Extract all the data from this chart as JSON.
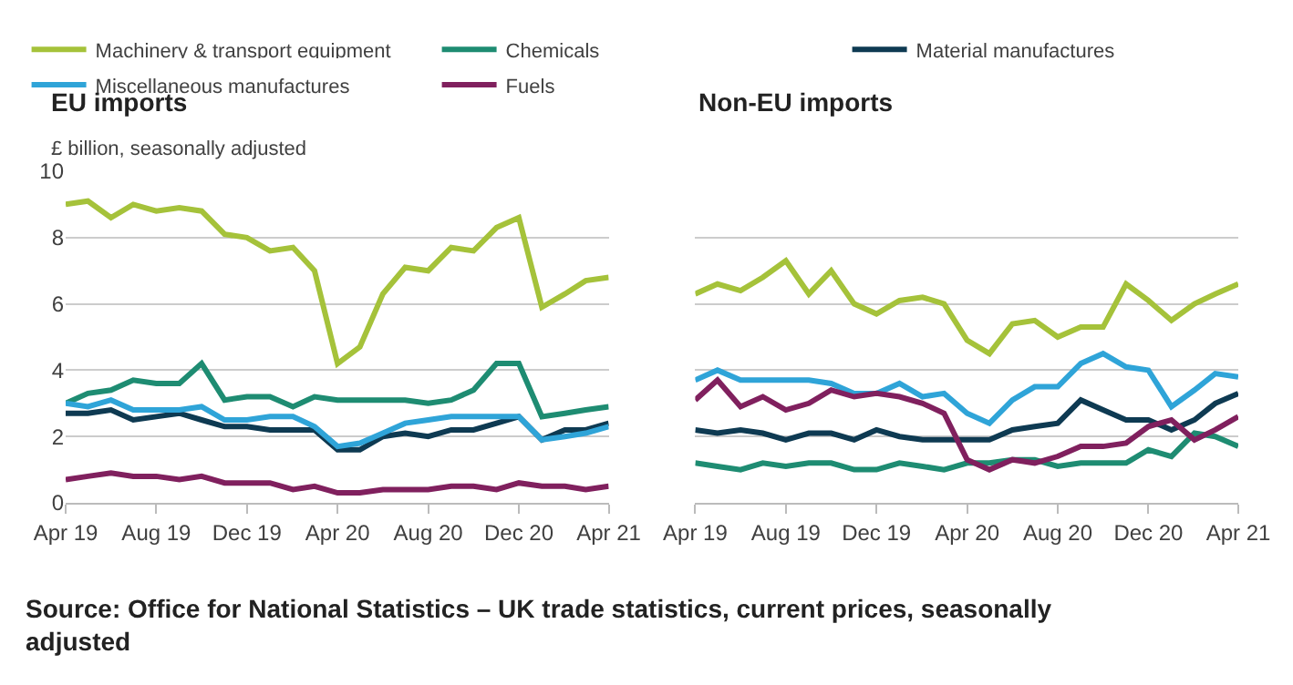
{
  "chart_data": [
    {
      "type": "line",
      "title": "EU imports",
      "ylabel": "£ billion, seasonally adjusted",
      "x": [
        "2019-04",
        "2019-05",
        "2019-06",
        "2019-07",
        "2019-08",
        "2019-09",
        "2019-10",
        "2019-11",
        "2019-12",
        "2020-01",
        "2020-02",
        "2020-03",
        "2020-04",
        "2020-05",
        "2020-06",
        "2020-07",
        "2020-08",
        "2020-09",
        "2020-10",
        "2020-11",
        "2020-12",
        "2021-01",
        "2021-02",
        "2021-03",
        "2021-04"
      ],
      "series": [
        {
          "name": "Machinery & transport equipment",
          "color": "#a5c23a",
          "values": [
            9.0,
            9.1,
            8.6,
            9.0,
            8.8,
            8.9,
            8.8,
            8.1,
            8.0,
            7.6,
            7.7,
            7.0,
            4.2,
            4.7,
            6.3,
            7.1,
            7.0,
            7.7,
            7.6,
            8.3,
            8.6,
            5.9,
            6.3,
            6.7,
            6.8
          ]
        },
        {
          "name": "Chemicals",
          "color": "#1e8c72",
          "values": [
            3.0,
            3.3,
            3.4,
            3.7,
            3.6,
            3.6,
            4.2,
            3.1,
            3.2,
            3.2,
            2.9,
            3.2,
            3.1,
            3.1,
            3.1,
            3.1,
            3.0,
            3.1,
            3.4,
            4.2,
            4.2,
            2.6,
            2.7,
            2.8,
            2.9
          ]
        },
        {
          "name": "Material manufactures",
          "color": "#0e3a52",
          "values": [
            2.7,
            2.7,
            2.8,
            2.5,
            2.6,
            2.7,
            2.5,
            2.3,
            2.3,
            2.2,
            2.2,
            2.2,
            1.6,
            1.6,
            2.0,
            2.1,
            2.0,
            2.2,
            2.2,
            2.4,
            2.6,
            1.9,
            2.2,
            2.2,
            2.4
          ]
        },
        {
          "name": "Miscellaneous manufactures",
          "color": "#2fa4d8",
          "values": [
            3.0,
            2.9,
            3.1,
            2.8,
            2.8,
            2.8,
            2.9,
            2.5,
            2.5,
            2.6,
            2.6,
            2.3,
            1.7,
            1.8,
            2.1,
            2.4,
            2.5,
            2.6,
            2.6,
            2.6,
            2.6,
            1.9,
            2.0,
            2.1,
            2.3
          ]
        },
        {
          "name": "Fuels",
          "color": "#80205e",
          "values": [
            0.7,
            0.8,
            0.9,
            0.8,
            0.8,
            0.7,
            0.8,
            0.6,
            0.6,
            0.6,
            0.4,
            0.5,
            0.3,
            0.3,
            0.4,
            0.4,
            0.4,
            0.5,
            0.5,
            0.4,
            0.6,
            0.5,
            0.5,
            0.4,
            0.5
          ]
        }
      ],
      "xlim": [
        "2019-04",
        "2021-04"
      ],
      "xticks": [
        {
          "value": "2019-04",
          "label": "Apr 19"
        },
        {
          "value": "2019-08",
          "label": "Aug 19"
        },
        {
          "value": "2019-12",
          "label": "Dec 19"
        },
        {
          "value": "2020-04",
          "label": "Apr 20"
        },
        {
          "value": "2020-08",
          "label": "Aug 20"
        },
        {
          "value": "2020-12",
          "label": "Dec 20"
        },
        {
          "value": "2021-04",
          "label": "Apr 21"
        }
      ],
      "ylim": [
        0,
        10
      ],
      "yticks": [
        0,
        2,
        4,
        6,
        8,
        10
      ],
      "grid": "y",
      "legend": "top",
      "marker": "none",
      "line_style": "solid",
      "annotations": [
        "Source: Office for National Statistics – UK trade statistics, current prices, seasonally adjusted"
      ]
    },
    {
      "type": "line",
      "title": "Non-EU imports",
      "x": [
        "2019-04",
        "2019-05",
        "2019-06",
        "2019-07",
        "2019-08",
        "2019-09",
        "2019-10",
        "2019-11",
        "2019-12",
        "2020-01",
        "2020-02",
        "2020-03",
        "2020-04",
        "2020-05",
        "2020-06",
        "2020-07",
        "2020-08",
        "2020-09",
        "2020-10",
        "2020-11",
        "2020-12",
        "2021-01",
        "2021-02",
        "2021-03",
        "2021-04"
      ],
      "series": [
        {
          "color": "#a5c23a",
          "values": [
            6.3,
            6.6,
            6.4,
            6.8,
            7.3,
            6.3,
            7.0,
            6.0,
            5.7,
            6.1,
            6.2,
            6.0,
            4.9,
            4.5,
            5.4,
            5.5,
            5.0,
            5.3,
            5.3,
            6.6,
            6.1,
            5.5,
            6.0,
            6.3,
            6.6
          ]
        },
        {
          "color": "#1e8c72",
          "values": [
            1.2,
            1.1,
            1.0,
            1.2,
            1.1,
            1.2,
            1.2,
            1.0,
            1.0,
            1.2,
            1.1,
            1.0,
            1.2,
            1.2,
            1.3,
            1.3,
            1.1,
            1.2,
            1.2,
            1.2,
            1.6,
            1.4,
            2.1,
            2.0,
            1.7
          ]
        },
        {
          "color": "#0e3a52",
          "values": [
            2.2,
            2.1,
            2.2,
            2.1,
            1.9,
            2.1,
            2.1,
            1.9,
            2.2,
            2.0,
            1.9,
            1.9,
            1.9,
            1.9,
            2.2,
            2.3,
            2.4,
            3.1,
            2.8,
            2.5,
            2.5,
            2.2,
            2.5,
            3.0,
            3.3
          ]
        },
        {
          "color": "#2fa4d8",
          "values": [
            3.7,
            4.0,
            3.7,
            3.7,
            3.7,
            3.7,
            3.6,
            3.3,
            3.3,
            3.6,
            3.2,
            3.3,
            2.7,
            2.4,
            3.1,
            3.5,
            3.5,
            4.2,
            4.5,
            4.1,
            4.0,
            2.9,
            3.4,
            3.9,
            3.8
          ]
        },
        {
          "color": "#80205e",
          "values": [
            3.1,
            3.7,
            2.9,
            3.2,
            2.8,
            3.0,
            3.4,
            3.2,
            3.3,
            3.2,
            3.0,
            2.7,
            1.3,
            1.0,
            1.3,
            1.2,
            1.4,
            1.7,
            1.7,
            1.8,
            2.3,
            2.5,
            1.9,
            2.2,
            2.6
          ]
        }
      ],
      "xlim": [
        "2019-04",
        "2021-04"
      ],
      "xticks": [
        {
          "value": "2019-04",
          "label": "Apr 19"
        },
        {
          "value": "2019-08",
          "label": "Aug 19"
        },
        {
          "value": "2019-12",
          "label": "Dec 19"
        },
        {
          "value": "2020-04",
          "label": "Apr 20"
        },
        {
          "value": "2020-08",
          "label": "Aug 20"
        },
        {
          "value": "2020-12",
          "label": "Dec 20"
        },
        {
          "value": "2021-04",
          "label": "Apr 21"
        }
      ],
      "ylim": [
        0,
        10
      ],
      "yticks": [
        0,
        2,
        4,
        6,
        8,
        10
      ],
      "grid": "y",
      "legend": "top",
      "marker": "none",
      "line_style": "solid",
      "tick_labels": "x"
    }
  ]
}
